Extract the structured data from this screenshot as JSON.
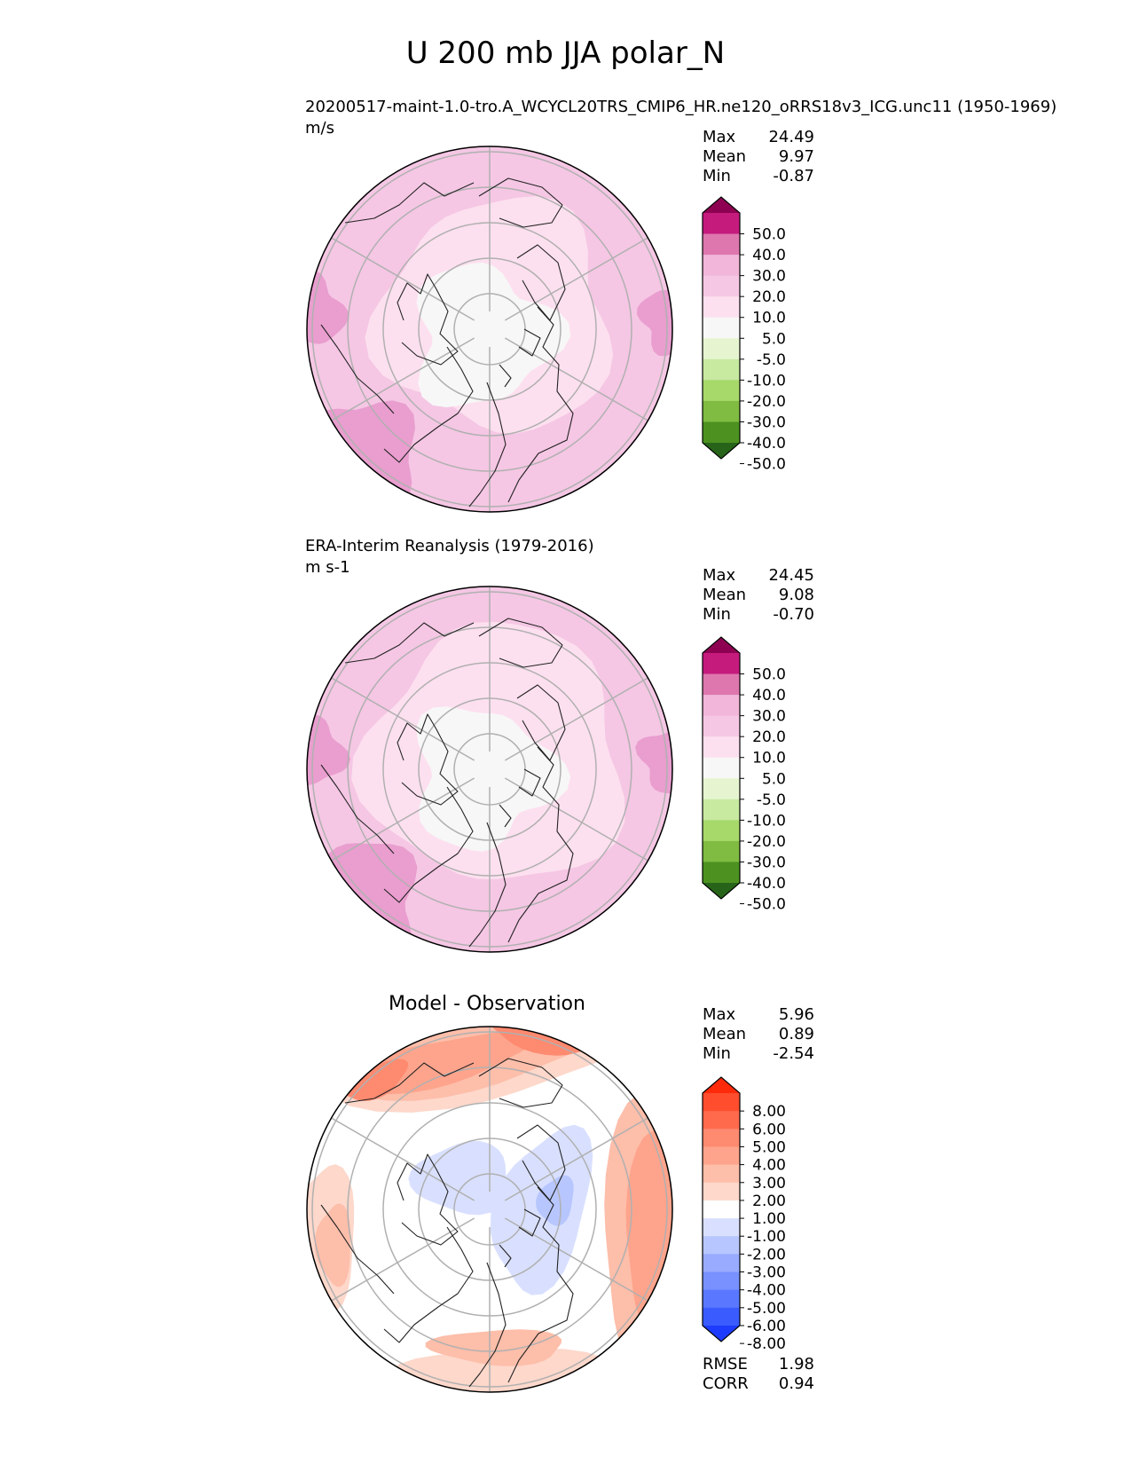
{
  "figure": {
    "title": "U 200 mb JJA polar_N"
  },
  "panels": [
    {
      "id": "test",
      "name": "20200517-maint-1.0-tro.A_WCYCL20TRS_CMIP6_HR.ne120_oRRS18v3_ICG.unc11 (1950-1969)",
      "units": "m/s",
      "stats": [
        {
          "label": "Max",
          "value": "24.49"
        },
        {
          "label": "Mean",
          "value": "9.97"
        },
        {
          "label": "Min",
          "value": "-0.87"
        }
      ]
    },
    {
      "id": "reference",
      "name": "ERA-Interim Reanalysis (1979-2016)",
      "units": "m s-1",
      "stats": [
        {
          "label": "Max",
          "value": "24.45"
        },
        {
          "label": "Mean",
          "value": "9.08"
        },
        {
          "label": "Min",
          "value": "-0.70"
        }
      ]
    },
    {
      "id": "diff",
      "title": "Model - Observation",
      "stats": [
        {
          "label": "Max",
          "value": "5.96"
        },
        {
          "label": "Mean",
          "value": "0.89"
        },
        {
          "label": "Min",
          "value": "-2.54"
        }
      ],
      "metrics": [
        {
          "label": "RMSE",
          "value": "1.98"
        },
        {
          "label": "CORR",
          "value": "0.94"
        }
      ]
    }
  ],
  "chart_data": [
    {
      "type": "heatmap",
      "projection": "north polar stereographic",
      "title": "20200517-maint-1.0-tro.A_WCYCL20TRS_CMIP6_HR.ne120_oRRS18v3_ICG.unc11 (1950-1969)",
      "units": "m/s",
      "colorbar": {
        "ticks": [
          "50.0",
          "40.0",
          "30.0",
          "20.0",
          "10.0",
          "5.0",
          "-5.0",
          "-10.0",
          "-20.0",
          "-30.0",
          "-40.0",
          "-50.0"
        ],
        "colors": [
          "#8e0152",
          "#c51b7d",
          "#de77ae",
          "#f1b6da",
          "#f5c7e4",
          "#fde0ef",
          "#f7f7f7",
          "#e6f5d0",
          "#c7e9a0",
          "#a6d96a",
          "#7fbc41",
          "#4d9221",
          "#276419"
        ]
      },
      "field_bands": [
        {
          "level": "5.0 to 10.0",
          "color": "#fde0ef"
        },
        {
          "level": "10.0 to 20.0",
          "color": "#f5c7e4"
        },
        {
          "level": "20.0 to 30.0",
          "color": "#e99ecf"
        },
        {
          "level": "-5.0 to 5.0",
          "color": "#f7f7f7"
        }
      ]
    },
    {
      "type": "heatmap",
      "projection": "north polar stereographic",
      "title": "ERA-Interim Reanalysis (1979-2016)",
      "units": "m s-1",
      "colorbar": {
        "ticks": [
          "50.0",
          "40.0",
          "30.0",
          "20.0",
          "10.0",
          "5.0",
          "-5.0",
          "-10.0",
          "-20.0",
          "-30.0",
          "-40.0",
          "-50.0"
        ],
        "colors": [
          "#8e0152",
          "#c51b7d",
          "#de77ae",
          "#f1b6da",
          "#f5c7e4",
          "#fde0ef",
          "#f7f7f7",
          "#e6f5d0",
          "#c7e9a0",
          "#a6d96a",
          "#7fbc41",
          "#4d9221",
          "#276419"
        ]
      },
      "field_bands": [
        {
          "level": "5.0 to 10.0",
          "color": "#fde0ef"
        },
        {
          "level": "10.0 to 20.0",
          "color": "#f5c7e4"
        },
        {
          "level": "20.0 to 30.0",
          "color": "#e99ecf"
        },
        {
          "level": "-5.0 to 5.0",
          "color": "#f7f7f7"
        }
      ]
    },
    {
      "type": "heatmap",
      "projection": "north polar stereographic",
      "title": "Model - Observation",
      "colorbar": {
        "ticks": [
          "8.00",
          "6.00",
          "5.00",
          "4.00",
          "3.00",
          "2.00",
          "1.00",
          "-1.00",
          "-2.00",
          "-3.00",
          "-4.00",
          "-5.00",
          "-6.00",
          "-8.00"
        ],
        "colors": [
          "#ff2a0a",
          "#ff4d2e",
          "#ff6a4d",
          "#fe8a70",
          "#fea48c",
          "#fdbeaa",
          "#fdd8cb",
          "#ffffff",
          "#d9e0ff",
          "#b8c6ff",
          "#98abff",
          "#7891ff",
          "#5a78ff",
          "#3a5cff",
          "#1e3cff"
        ]
      }
    }
  ]
}
